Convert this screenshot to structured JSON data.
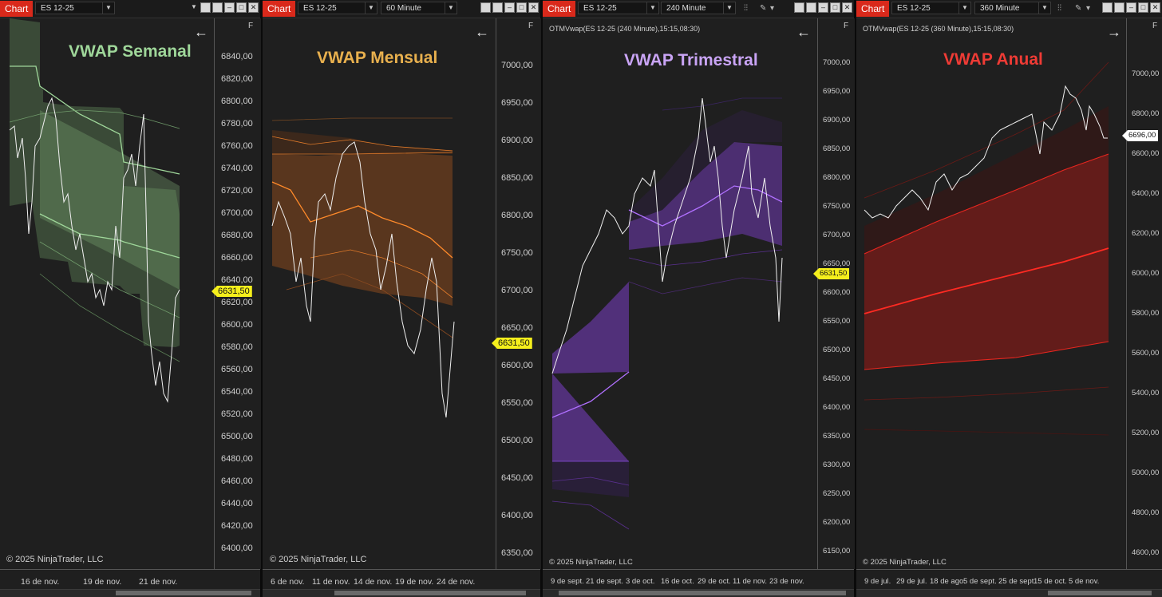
{
  "panes": [
    {
      "id": "weekly",
      "chart_label": "Chart",
      "instrument": "ES 12-25",
      "interval": "",
      "title": "VWAP Semanal",
      "title_color": "#9fd79a",
      "indicator_label": "",
      "copyright": "© 2025 NinjaTrader, LLC",
      "arrow": "←",
      "fbox": "F",
      "y_ticks": [
        "6840,00",
        "6820,00",
        "6800,00",
        "6780,00",
        "6760,00",
        "6740,00",
        "6720,00",
        "6700,00",
        "6680,00",
        "6660,00",
        "6640,00",
        "6620,00",
        "6600,00",
        "6580,00",
        "6560,00",
        "6540,00",
        "6520,00",
        "6500,00",
        "6480,00",
        "6460,00",
        "6440,00",
        "6420,00",
        "6400,00"
      ],
      "x_ticks": [
        "16 de nov.",
        "19 de nov.",
        "21 de nov."
      ],
      "last_price": "6631,50",
      "band_color": "#7dbf78"
    },
    {
      "id": "monthly",
      "chart_label": "Chart",
      "instrument": "ES 12-25",
      "interval": "60 Minute",
      "title": "VWAP Mensual",
      "title_color": "#e8b04e",
      "indicator_label": "",
      "copyright": "© 2025 NinjaTrader, LLC",
      "arrow": "←",
      "fbox": "F",
      "y_ticks": [
        "7000,00",
        "6950,00",
        "6900,00",
        "6850,00",
        "6800,00",
        "6750,00",
        "6700,00",
        "6650,00",
        "6600,00",
        "6550,00",
        "6500,00",
        "6450,00",
        "6400,00",
        "6350,00"
      ],
      "x_ticks": [
        "6 de nov.",
        "11 de nov.",
        "14 de nov.",
        "19 de nov.",
        "24 de nov."
      ],
      "last_price": "6631,50",
      "band_color": "#e07a2a"
    },
    {
      "id": "quarterly",
      "chart_label": "Chart",
      "instrument": "ES 12-25",
      "interval": "240 Minute",
      "title": "VWAP Trimestral",
      "title_color": "#c9a4f5",
      "indicator_label": "OTMVwap(ES 12-25 (240 Minute),15:15,08:30)",
      "copyright": "© 2025 NinjaTrader, LLC",
      "arrow": "←",
      "fbox": "F",
      "y_ticks": [
        "7000,00",
        "6950,00",
        "6900,00",
        "6850,00",
        "6800,00",
        "6750,00",
        "6700,00",
        "6650,00",
        "6600,00",
        "6550,00",
        "6500,00",
        "6450,00",
        "6400,00",
        "6350,00",
        "6300,00",
        "6250,00",
        "6200,00",
        "6150,00"
      ],
      "x_ticks": [
        "9 de sept.",
        "21 de sept.",
        "3 de oct.",
        "16 de oct.",
        "29 de oct.",
        "11 de nov.",
        "23 de nov."
      ],
      "last_price": "6631,50",
      "band_color": "#8a4fe0"
    },
    {
      "id": "yearly",
      "chart_label": "Chart",
      "instrument": "ES 12-25",
      "interval": "360 Minute",
      "title": "VWAP Anual",
      "title_color": "#ef3b35",
      "indicator_label": "OTMVwap(ES 12-25 (360 Minute),15:15,08:30)",
      "copyright": "© 2025 NinjaTrader, LLC",
      "arrow": "→",
      "fbox": "F",
      "y_ticks": [
        "7000,00",
        "6800,00",
        "6600,00",
        "6400,00",
        "6200,00",
        "6000,00",
        "5800,00",
        "5600,00",
        "5400,00",
        "5200,00",
        "5000,00",
        "4800,00",
        "4600,00"
      ],
      "x_ticks": [
        "9 de jul.",
        "29 de jul.",
        "18 de ago.",
        "5 de sept.",
        "25 de sept.",
        "15 de oct.",
        "5 de nov."
      ],
      "last_price": "6696,00",
      "band_color": "#d8261f"
    }
  ]
}
